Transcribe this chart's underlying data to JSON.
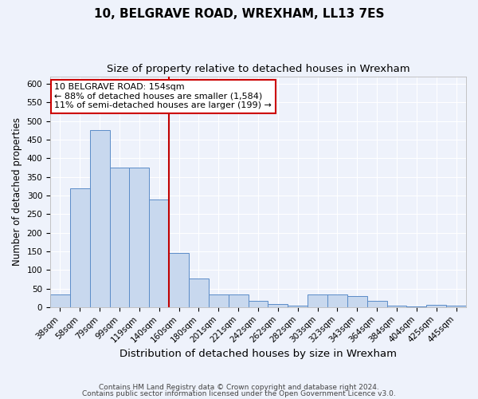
{
  "title": "10, BELGRAVE ROAD, WREXHAM, LL13 7ES",
  "subtitle": "Size of property relative to detached houses in Wrexham",
  "xlabel": "Distribution of detached houses by size in Wrexham",
  "ylabel": "Number of detached properties",
  "categories": [
    "38sqm",
    "58sqm",
    "79sqm",
    "99sqm",
    "119sqm",
    "140sqm",
    "160sqm",
    "180sqm",
    "201sqm",
    "221sqm",
    "242sqm",
    "262sqm",
    "282sqm",
    "303sqm",
    "323sqm",
    "343sqm",
    "364sqm",
    "384sqm",
    "404sqm",
    "425sqm",
    "445sqm"
  ],
  "values": [
    33,
    320,
    475,
    375,
    375,
    290,
    145,
    76,
    33,
    33,
    16,
    8,
    5,
    33,
    33,
    29,
    16,
    5,
    2,
    6,
    5
  ],
  "bar_color": "#c8d8ee",
  "bar_edge_color": "#5b8cc8",
  "vline_color": "#c00000",
  "vline_x_index": 6,
  "annotation_line1": "10 BELGRAVE ROAD: 154sqm",
  "annotation_line2": "← 88% of detached houses are smaller (1,584)",
  "annotation_line3": "11% of semi-detached houses are larger (199) →",
  "annotation_box_color": "#ffffff",
  "annotation_box_edge": "#cc0000",
  "ylim": [
    0,
    620
  ],
  "yticks": [
    0,
    50,
    100,
    150,
    200,
    250,
    300,
    350,
    400,
    450,
    500,
    550,
    600
  ],
  "footnote1": "Contains HM Land Registry data © Crown copyright and database right 2024.",
  "footnote2": "Contains public sector information licensed under the Open Government Licence v3.0.",
  "bg_color": "#eef2fb",
  "grid_color": "#ffffff",
  "title_fontsize": 11,
  "subtitle_fontsize": 9.5,
  "xlabel_fontsize": 9.5,
  "ylabel_fontsize": 8.5,
  "tick_fontsize": 7.5,
  "annotation_fontsize": 8,
  "footnote_fontsize": 6.5
}
